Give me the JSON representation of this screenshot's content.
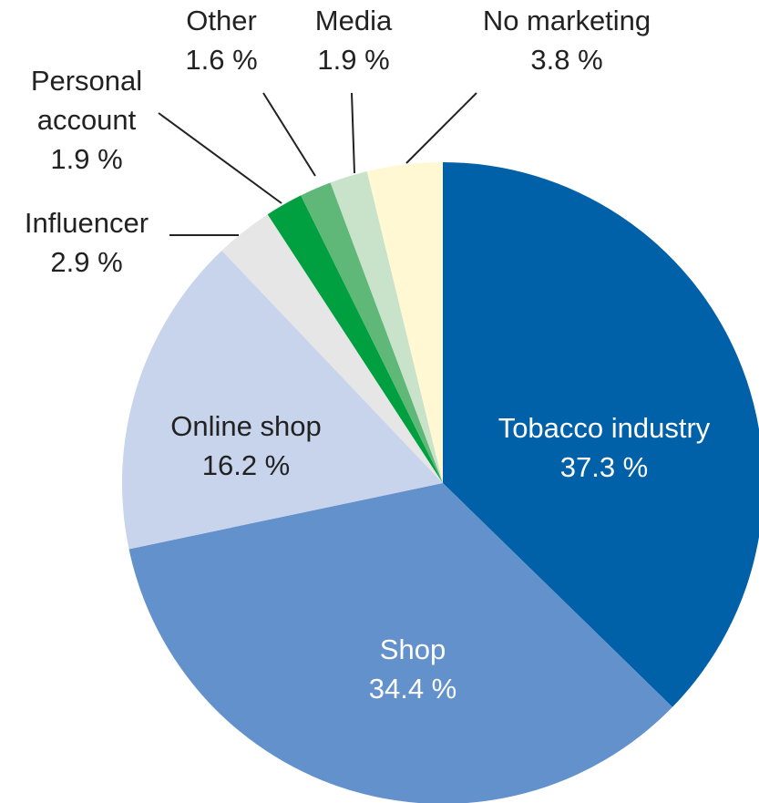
{
  "chart_data": {
    "type": "pie",
    "categories": [
      "Tobacco industry",
      "Shop",
      "Online shop",
      "Influencer",
      "Personal account",
      "Other",
      "Media",
      "No marketing"
    ],
    "values": [
      37.3,
      34.4,
      16.2,
      2.9,
      1.9,
      1.6,
      1.9,
      3.8
    ],
    "value_labels": [
      "37.3 %",
      "34.4 %",
      "16.2 %",
      "2.9 %",
      "1.9 %",
      "1.6 %",
      "1.9 %",
      "3.8 %"
    ],
    "colors": [
      "#0060a8",
      "#6391cb",
      "#c8d3ec",
      "#e6e6e6",
      "#00a040",
      "#5fb878",
      "#c9e3cb",
      "#fff8d2"
    ]
  }
}
